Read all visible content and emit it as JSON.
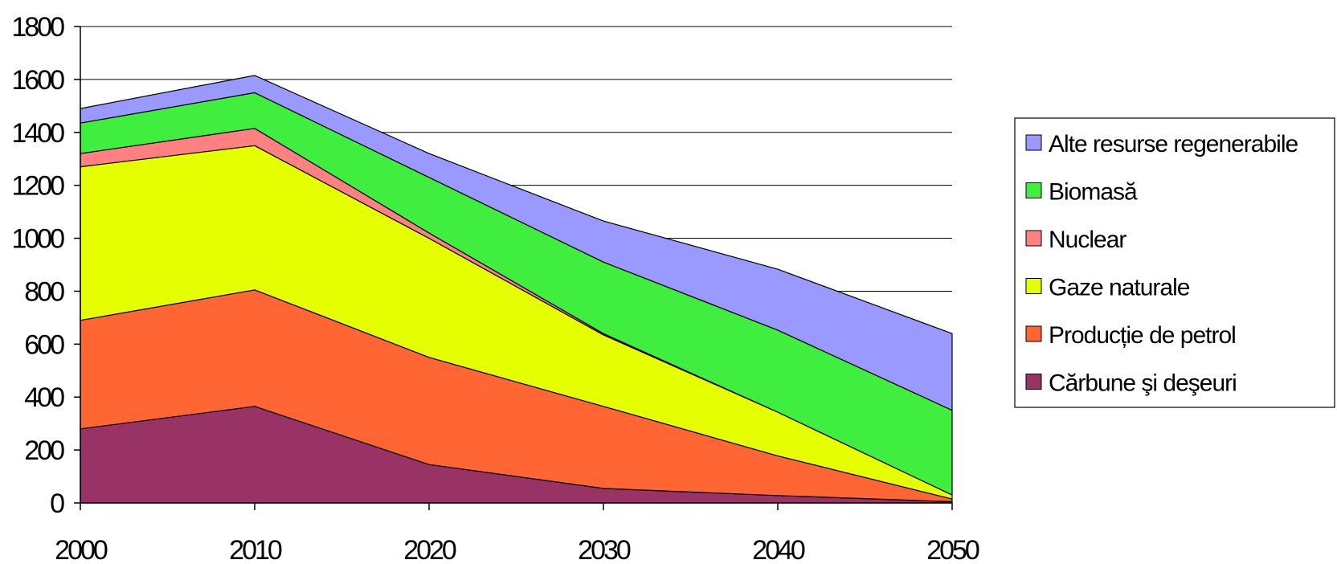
{
  "chart_data": {
    "type": "area",
    "stacked": true,
    "title": "",
    "xlabel": "",
    "ylabel": "",
    "x": [
      2000,
      2010,
      2020,
      2030,
      2040,
      2050
    ],
    "x_tick_labels": [
      "2000",
      "2010",
      "2020",
      "2030",
      "2040",
      "2050"
    ],
    "ylim": [
      0,
      1800
    ],
    "y_tick_labels": [
      "0",
      "200",
      "400",
      "600",
      "800",
      "1000",
      "1200",
      "1400",
      "1600",
      "1800"
    ],
    "grid": "horizontal",
    "legend_position": "right",
    "series": [
      {
        "name": "Cărbune şi deşeuri",
        "color": "#993366",
        "values": [
          280,
          365,
          145,
          55,
          28,
          5
        ]
      },
      {
        "name": "Producție de petrol",
        "color": "#ff6633",
        "values": [
          410,
          440,
          405,
          310,
          150,
          10
        ]
      },
      {
        "name": "Gaze naturale",
        "color": "#e5ff00",
        "values": [
          580,
          545,
          450,
          270,
          165,
          15
        ]
      },
      {
        "name": "Nuclear",
        "color": "#ff8080",
        "values": [
          50,
          65,
          20,
          5,
          0,
          0
        ]
      },
      {
        "name": "Biomasă",
        "color": "#40ee40",
        "values": [
          115,
          135,
          210,
          270,
          310,
          320
        ]
      },
      {
        "name": "Alte resurse regenerabile",
        "color": "#9999ff",
        "values": [
          55,
          65,
          90,
          155,
          230,
          290
        ]
      }
    ]
  }
}
